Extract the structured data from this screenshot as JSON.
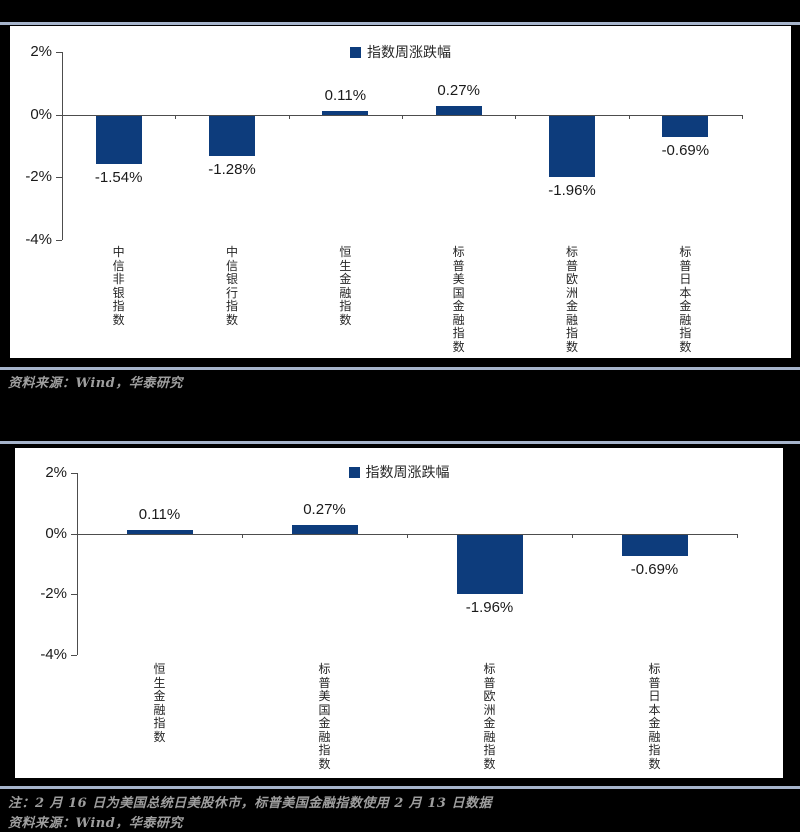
{
  "page": {
    "background": "#000000",
    "divider_color": "#a6b4cb",
    "panel_background": "#ffffff",
    "axis_color": "#4d4d4d",
    "footer_text_color": "#9e9e9e"
  },
  "chart_data": [
    {
      "type": "bar",
      "legend": "指数周涨跌幅",
      "legend_position": "top-center",
      "categories": [
        "中信非银指数",
        "中信银行指数",
        "恒生金融指数",
        "标普美国金融指数",
        "标普欧洲金融指数",
        "标普日本金融指数"
      ],
      "values": [
        -1.54,
        -1.28,
        0.11,
        0.27,
        -1.96,
        -0.69
      ],
      "value_labels": [
        "-1.54%",
        "-1.28%",
        "0.11%",
        "0.27%",
        "-1.96%",
        "-0.69%"
      ],
      "ylim": [
        -4,
        2
      ],
      "y_tick_labels": [
        "2%",
        "0%",
        "-2%",
        "-4%"
      ],
      "grid": false,
      "bar_color": "#0d3c7c",
      "source": "资料来源：Wind，华泰研究"
    },
    {
      "type": "bar",
      "legend": "指数周涨跌幅",
      "legend_position": "top-center",
      "categories": [
        "恒生金融指数",
        "标普美国金融指数",
        "标普欧洲金融指数",
        "标普日本金融指数"
      ],
      "values": [
        0.11,
        0.27,
        -1.96,
        -0.69
      ],
      "value_labels": [
        "0.11%",
        "0.27%",
        "-1.96%",
        "-0.69%"
      ],
      "ylim": [
        -4,
        2
      ],
      "y_tick_labels": [
        "2%",
        "0%",
        "-2%",
        "-4%"
      ],
      "grid": false,
      "bar_color": "#0d3c7c",
      "note": "注：2 月 16 日为美国总统日美股休市，标普美国金融指数使用 2 月 13 日数据",
      "source": "资料来源：Wind，华泰研究"
    }
  ]
}
